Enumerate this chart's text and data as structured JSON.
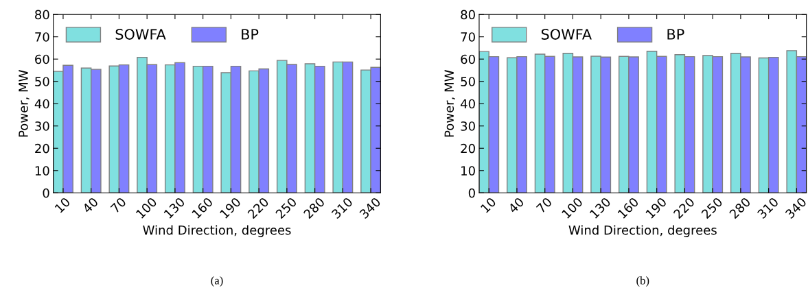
{
  "chart_data": [
    {
      "type": "bar",
      "categories": [
        "10",
        "40",
        "70",
        "100",
        "130",
        "160",
        "190",
        "220",
        "250",
        "280",
        "310",
        "340"
      ],
      "xlabel": "Wind Direction, degrees",
      "ylabel": "Power, MW",
      "ylim": [
        0,
        80
      ],
      "yticks": [
        0,
        10,
        20,
        30,
        40,
        50,
        60,
        70,
        80
      ],
      "legend": "top left",
      "grid": false,
      "annotations": [
        "(a)"
      ],
      "series": [
        {
          "name": "SOWFA",
          "color": "#80e0e0",
          "values": [
            54.5,
            56.0,
            56.9,
            60.8,
            57.4,
            56.8,
            53.9,
            54.7,
            59.4,
            57.9,
            58.7,
            55.1
          ]
        },
        {
          "name": "BP",
          "color": "#8080ff",
          "values": [
            57.2,
            55.4,
            57.4,
            57.5,
            58.4,
            56.8,
            56.8,
            55.6,
            57.6,
            56.8,
            58.7,
            56.3
          ]
        }
      ]
    },
    {
      "type": "bar",
      "categories": [
        "10",
        "40",
        "70",
        "100",
        "130",
        "160",
        "190",
        "220",
        "250",
        "280",
        "310",
        "340"
      ],
      "xlabel": "Wind Direction, degrees",
      "ylabel": "Power, MW",
      "ylim": [
        0,
        80
      ],
      "yticks": [
        0,
        10,
        20,
        30,
        40,
        50,
        60,
        70,
        80
      ],
      "legend": "top left",
      "grid": false,
      "annotations": [
        "(b)"
      ],
      "series": [
        {
          "name": "SOWFA",
          "color": "#80e0e0",
          "values": [
            63.4,
            60.6,
            62.2,
            62.6,
            61.3,
            61.2,
            63.5,
            62.0,
            61.6,
            62.6,
            60.5,
            63.8
          ]
        },
        {
          "name": "BP",
          "color": "#8080ff",
          "values": [
            61.1,
            61.1,
            61.2,
            61.0,
            60.9,
            61.0,
            61.2,
            61.1,
            61.1,
            61.0,
            60.8,
            61.1
          ]
        }
      ]
    }
  ]
}
